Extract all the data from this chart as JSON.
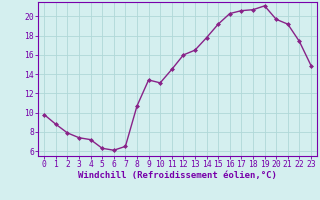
{
  "x": [
    0,
    1,
    2,
    3,
    4,
    5,
    6,
    7,
    8,
    9,
    10,
    11,
    12,
    13,
    14,
    15,
    16,
    17,
    18,
    19,
    20,
    21,
    22,
    23
  ],
  "y": [
    9.8,
    8.8,
    7.9,
    7.4,
    7.2,
    6.3,
    6.1,
    6.5,
    10.7,
    13.4,
    13.1,
    14.5,
    16.0,
    16.5,
    17.8,
    19.2,
    20.3,
    20.6,
    20.7,
    21.1,
    19.7,
    19.2,
    17.4,
    14.9
  ],
  "line_color": "#882288",
  "marker": "D",
  "marker_size": 2.0,
  "bg_color": "#d4efef",
  "grid_color": "#b0d8d8",
  "xlabel": "Windchill (Refroidissement éolien,°C)",
  "xlim": [
    -0.5,
    23.5
  ],
  "ylim": [
    5.5,
    21.5
  ],
  "yticks": [
    6,
    8,
    10,
    12,
    14,
    16,
    18,
    20
  ],
  "xticks": [
    0,
    1,
    2,
    3,
    4,
    5,
    6,
    7,
    8,
    9,
    10,
    11,
    12,
    13,
    14,
    15,
    16,
    17,
    18,
    19,
    20,
    21,
    22,
    23
  ],
  "xlabel_fontsize": 6.5,
  "tick_fontsize": 5.8,
  "axis_label_color": "#7700aa",
  "tick_color": "#7700aa",
  "spine_color": "#7700aa",
  "line_width": 1.0
}
